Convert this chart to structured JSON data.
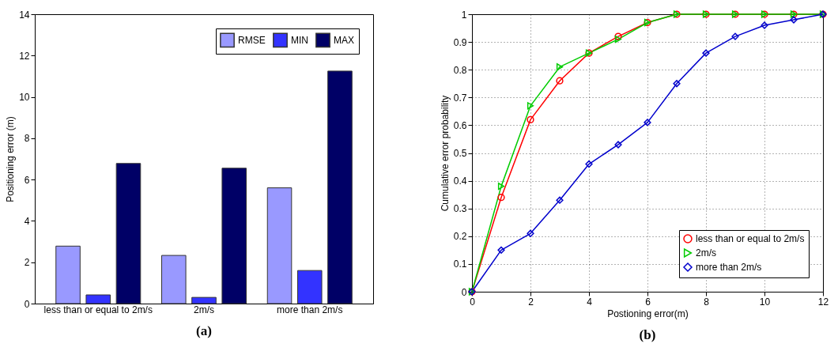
{
  "chart_data": [
    {
      "type": "bar",
      "ylabel": "Positioning error (m)",
      "categories": [
        "less than or equal to 2m/s",
        "2m/s",
        "more than 2m/s"
      ],
      "series": [
        {
          "name": "RMSE",
          "color": "#9999ff",
          "values": [
            2.78,
            2.33,
            5.6
          ]
        },
        {
          "name": "MIN",
          "color": "#3333ff",
          "values": [
            0.42,
            0.3,
            1.6
          ]
        },
        {
          "name": "MAX",
          "color": "#000066",
          "values": [
            6.78,
            6.55,
            11.25
          ]
        }
      ],
      "ylim": [
        0,
        14
      ],
      "yticks": [
        0,
        2,
        4,
        6,
        8,
        10,
        12,
        14
      ],
      "legend": "top right",
      "annotations": [
        "(a)"
      ]
    },
    {
      "type": "line",
      "xlabel": "Postioning error(m)",
      "ylabel": "Cumulative error probability",
      "x": [
        0,
        1,
        2,
        3,
        4,
        5,
        6,
        7,
        8,
        9,
        10,
        11,
        12
      ],
      "series": [
        {
          "name": "less than or equal to 2m/s",
          "color": "#ff0000",
          "marker": "circle",
          "values": [
            0,
            0.34,
            0.62,
            0.76,
            0.86,
            0.92,
            0.97,
            1,
            1,
            1,
            1,
            1,
            1
          ]
        },
        {
          "name": "2m/s",
          "color": "#00cc00",
          "marker": "triangle",
          "values": [
            0,
            0.38,
            0.67,
            0.81,
            0.86,
            0.91,
            0.97,
            1,
            1,
            1,
            1,
            1,
            1
          ]
        },
        {
          "name": "more than 2m/s",
          "color": "#0000cc",
          "marker": "diamond",
          "values": [
            0,
            0.15,
            0.21,
            0.33,
            0.46,
            0.53,
            0.61,
            0.75,
            0.86,
            0.92,
            0.96,
            0.98,
            1
          ]
        }
      ],
      "xlim": [
        0,
        12
      ],
      "xticks": [
        0,
        2,
        4,
        6,
        8,
        10,
        12
      ],
      "ylim": [
        0,
        1
      ],
      "yticks": [
        0,
        0.1,
        0.2,
        0.3,
        0.4,
        0.5,
        0.6,
        0.7,
        0.8,
        0.9,
        1
      ],
      "grid": true,
      "legend": "bottom right",
      "annotations": [
        "(b)"
      ]
    }
  ]
}
